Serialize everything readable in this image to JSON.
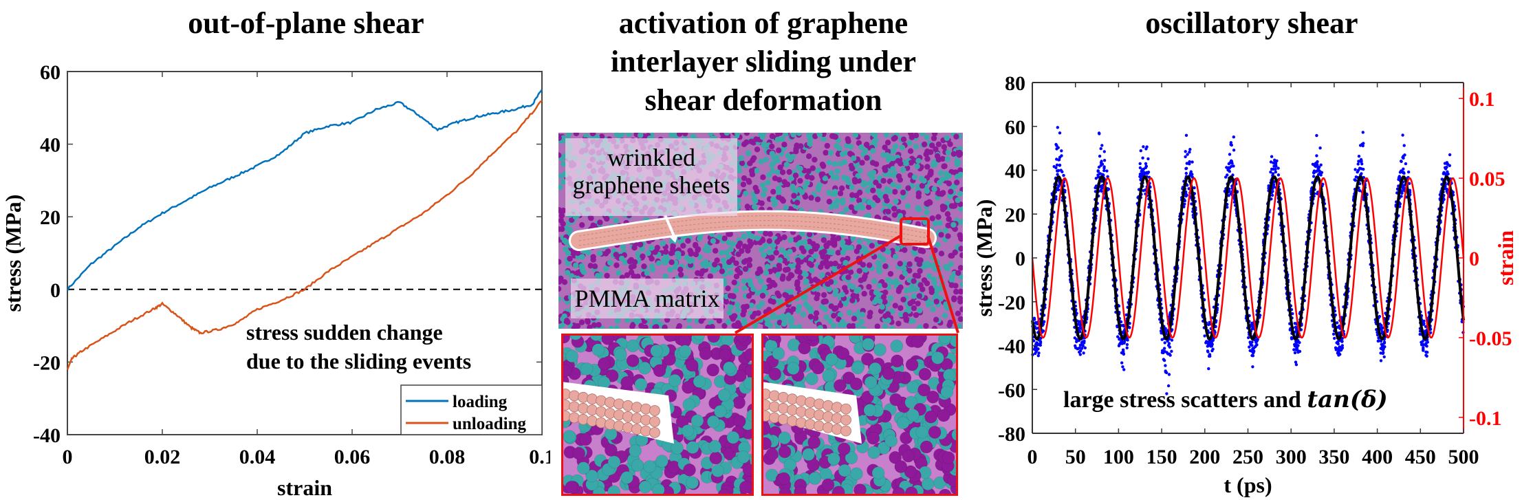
{
  "panels": {
    "left": {
      "title": "out-of-plane shear"
    },
    "middle": {
      "title_lines": [
        "activation of graphene",
        "interlayer sliding under",
        "shear deformation"
      ],
      "labels": {
        "graphene": [
          "wrinkled",
          "graphene sheets"
        ],
        "matrix": "PMMA matrix"
      },
      "colors": {
        "pmma_a": "#8e1a9a",
        "pmma_b": "#3aa8a8",
        "graphene": "#e8a8a0",
        "highlight": "#ee1111"
      }
    },
    "right": {
      "title": "oscillatory shear"
    }
  },
  "chart_data": [
    {
      "type": "line",
      "title": "out-of-plane shear",
      "xlabel": "strain",
      "ylabel": "stress (MPa)",
      "xlim": [
        0,
        0.1
      ],
      "ylim": [
        -40,
        60
      ],
      "xticks": [
        "0",
        "0.02",
        "0.04",
        "0.06",
        "0.08",
        "0.1"
      ],
      "yticks": [
        "-40",
        "-20",
        "0",
        "20",
        "40",
        "60"
      ],
      "grid": false,
      "legend_position": "lower right",
      "reference_line": {
        "y": 0,
        "style": "dashed",
        "color": "#000000"
      },
      "annotation": [
        "stress sudden change",
        "due to the sliding events"
      ],
      "series": [
        {
          "name": "loading",
          "color": "#0072bd",
          "x": [
            0,
            0.005,
            0.01,
            0.015,
            0.02,
            0.025,
            0.03,
            0.035,
            0.04,
            0.045,
            0.05,
            0.055,
            0.06,
            0.065,
            0.07,
            0.074,
            0.078,
            0.082,
            0.086,
            0.09,
            0.094,
            0.098,
            0.1
          ],
          "values": [
            0,
            7,
            12,
            17,
            21,
            24.5,
            28,
            31,
            34,
            37.5,
            43,
            45,
            46,
            49.5,
            51.5,
            48,
            44,
            46,
            47.5,
            48.5,
            49.5,
            51,
            55
          ]
        },
        {
          "name": "unloading",
          "color": "#d95319",
          "x": [
            0,
            0.001,
            0.003,
            0.008,
            0.013,
            0.018,
            0.02,
            0.023,
            0.026,
            0.028,
            0.032,
            0.036,
            0.04,
            0.045,
            0.05,
            0.055,
            0.06,
            0.065,
            0.07,
            0.075,
            0.08,
            0.085,
            0.09,
            0.095,
            0.1
          ],
          "values": [
            -22,
            -19,
            -17,
            -13,
            -9,
            -5.5,
            -4,
            -7,
            -10.5,
            -12,
            -11,
            -9,
            -5.5,
            -3,
            0,
            5,
            9,
            13,
            17,
            21,
            26,
            31.5,
            38,
            44,
            52
          ]
        }
      ]
    },
    {
      "type": "scatter",
      "title": "oscillatory shear",
      "xlabel": "t (ps)",
      "ylabel": "stress (MPa)",
      "ylabel_right": "strain",
      "xlim": [
        0,
        500
      ],
      "ylim": [
        -80,
        80
      ],
      "ylim_right": [
        -0.11,
        0.11
      ],
      "xticks": [
        "0",
        "50",
        "100",
        "150",
        "200",
        "250",
        "300",
        "350",
        "400",
        "450",
        "500"
      ],
      "yticks": [
        "-80",
        "-60",
        "-40",
        "-20",
        "0",
        "20",
        "40",
        "60",
        "80"
      ],
      "yticks_right": [
        "-0.1",
        "-0.05",
        "0",
        "0.05",
        "0.1"
      ],
      "grid": false,
      "annotation": "large stress scatters and tan(δ)",
      "series": [
        {
          "name": "stress (MD scatter)",
          "color": "#0000ff",
          "kind": "scatter",
          "period_ps": 50,
          "amplitude": 37,
          "scatter_peaks": [
            54,
            67,
            58,
            50,
            60,
            53,
            54,
            57,
            52,
            47
          ],
          "scatter_troughs": [
            -56,
            -52,
            -49,
            -58,
            -49,
            -43,
            -46,
            -41,
            -44,
            -41
          ]
        },
        {
          "name": "stress fit",
          "color": "#000000",
          "kind": "line",
          "period_ps": 50,
          "amplitude": 37,
          "phase_lead_ps": 7
        },
        {
          "name": "strain",
          "color": "#ff0000",
          "kind": "line",
          "axis": "right",
          "period_ps": 50,
          "amplitude": 0.05
        }
      ]
    }
  ]
}
